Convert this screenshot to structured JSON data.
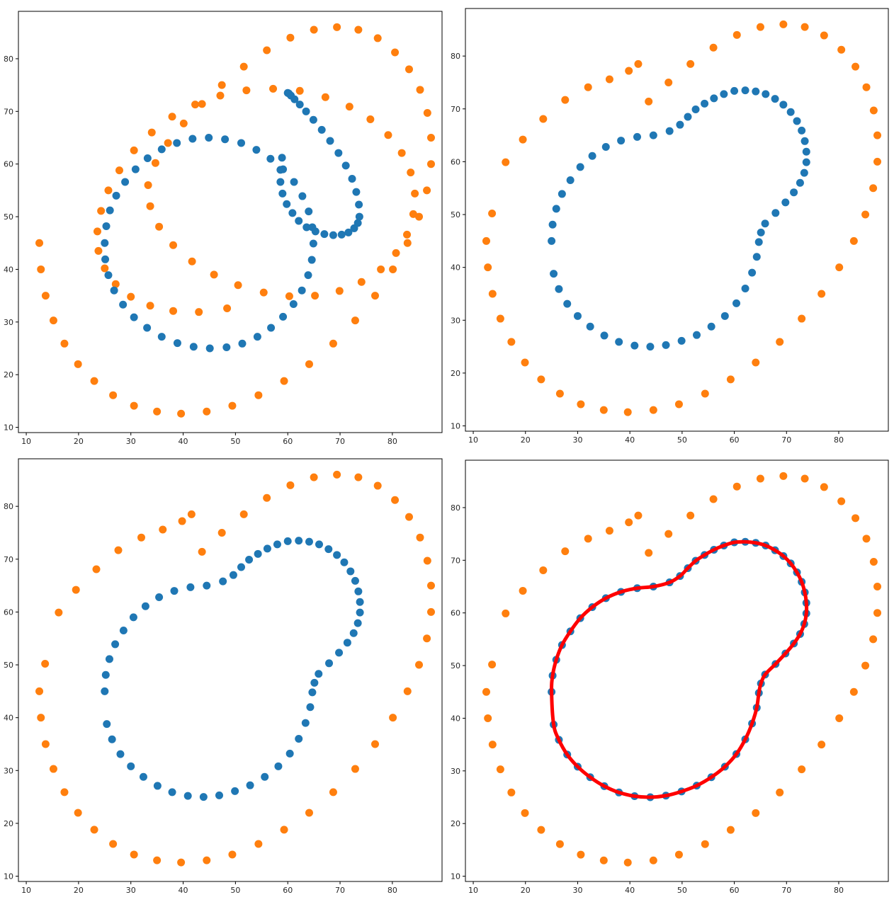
{
  "figure": {
    "layout": "2x2 grid",
    "colors": {
      "ring_inner": "#1f77b4",
      "ring_outer": "#ff7f0e",
      "fitted_curve": "#ff0000"
    }
  },
  "chart_data": [
    {
      "type": "scatter",
      "panel": "top-left",
      "title": "",
      "xlabel": "",
      "ylabel": "",
      "xlim": [
        8.5,
        89.5
      ],
      "ylim": [
        9,
        89
      ],
      "xticks": [
        "10",
        "20",
        "30",
        "40",
        "50",
        "60",
        "70",
        "80"
      ],
      "yticks": [
        "10",
        "20",
        "30",
        "40",
        "50",
        "60",
        "70",
        "80"
      ],
      "grid": false,
      "series": [
        {
          "color": "#1f77b4",
          "x": [
            25,
            25.3,
            26,
            27.2,
            28.9,
            30.9,
            33.2,
            35.9,
            38.8,
            41.8,
            44.9,
            48.0,
            51.1,
            54.0,
            56.7,
            59.1,
            61.2,
            62.8,
            64.0,
            64.7,
            64.9,
            64.6,
            63.9,
            62.7,
            61.1,
            59.1,
            56.8,
            54.2,
            51.3,
            48.3,
            45.1,
            42.0,
            38.9,
            35.9,
            33.1,
            30.6,
            28.5,
            26.8,
            25.7,
            25.1,
            60,
            60.2,
            60.6,
            61.3,
            62.3,
            63.5,
            64.9,
            66.5,
            68.1,
            69.7,
            71.1,
            72.3,
            73.1,
            73.6,
            73.7,
            73.4,
            72.7,
            71.6,
            70.3,
            68.7,
            67.0,
            65.3,
            63.6,
            62.1,
            60.9,
            59.8,
            59.0,
            58.6,
            58.6,
            58.9
          ],
          "y": [
            45,
            48.2,
            51.2,
            54.0,
            56.6,
            59.0,
            61.1,
            62.8,
            64.0,
            64.8,
            65.0,
            64.7,
            64.0,
            62.7,
            61.0,
            59.0,
            56.6,
            53.9,
            51.0,
            48.0,
            44.9,
            41.8,
            38.9,
            36.0,
            33.4,
            31.0,
            28.9,
            27.2,
            25.9,
            25.2,
            25.0,
            25.3,
            26.0,
            27.2,
            28.9,
            30.9,
            33.3,
            36.0,
            38.9,
            41.9,
            73.5,
            73.4,
            73.0,
            72.3,
            71.3,
            70.0,
            68.4,
            66.5,
            64.4,
            62.1,
            59.7,
            57.2,
            54.7,
            52.3,
            50.0,
            48.8,
            47.8,
            47.0,
            46.6,
            46.5,
            46.7,
            47.2,
            48.0,
            49.2,
            50.7,
            52.4,
            54.4,
            56.6,
            58.9,
            61.2
          ]
        },
        {
          "color": "#ff7f0e",
          "x": [
            12.5,
            12.8,
            13.7,
            15.2,
            17.3,
            19.9,
            23.0,
            26.6,
            30.6,
            35.0,
            39.6,
            44.5,
            49.4,
            54.4,
            59.3,
            64.1,
            68.7,
            72.9,
            76.7,
            80.1,
            82.9,
            85.1,
            86.6,
            87.4,
            87.4,
            86.7,
            85.3,
            83.2,
            80.5,
            77.2,
            73.5,
            69.4,
            65.0,
            60.5,
            56.0,
            51.6,
            47.4,
            43.6,
            40.1,
            37.1,
            34.7,
            33.3,
            33.7,
            35.4,
            38.1,
            41.7,
            45.9,
            50.5,
            55.4,
            60.3,
            65.2,
            69.9,
            74.1,
            77.8,
            80.7,
            82.8,
            84.0,
            84.3,
            83.5,
            81.8,
            79.2,
            75.8,
            71.8,
            67.2,
            62.3,
            57.2,
            52.1,
            47.1,
            42.3,
            37.9,
            34.0,
            30.6,
            27.8,
            25.7,
            24.3,
            23.6,
            23.8,
            25.0,
            27.1,
            30.0,
            33.7,
            38.1,
            43.0,
            48.4
          ],
          "y": [
            45,
            40,
            35,
            30.3,
            25.9,
            22,
            18.8,
            16.1,
            14.1,
            13,
            12.6,
            13,
            14.1,
            16.1,
            18.8,
            22,
            25.9,
            30.3,
            35,
            40,
            45,
            50,
            55,
            60,
            65,
            69.7,
            74.1,
            78,
            81.2,
            83.9,
            85.5,
            86.0,
            85.5,
            84.0,
            81.6,
            78.5,
            75.0,
            71.4,
            67.7,
            64.0,
            60.2,
            56.0,
            52.0,
            48.1,
            44.6,
            41.5,
            39.0,
            37.0,
            35.6,
            34.9,
            35.0,
            35.9,
            37.6,
            40.0,
            43.1,
            46.6,
            50.5,
            54.4,
            58.4,
            62.1,
            65.5,
            68.5,
            70.9,
            72.7,
            73.9,
            74.3,
            74.0,
            73.0,
            71.3,
            69.0,
            66.0,
            62.6,
            58.8,
            55.0,
            51.1,
            47.2,
            43.5,
            40.2,
            37.2,
            34.8,
            33.1,
            32.1,
            31.9,
            32.6
          ]
        }
      ]
    },
    {
      "type": "scatter",
      "panel": "top-right",
      "title": "",
      "xlabel": "",
      "ylabel": "",
      "xlim": [
        8.5,
        89.5
      ],
      "ylim": [
        9,
        89
      ],
      "xticks": [
        "10",
        "20",
        "30",
        "40",
        "50",
        "60",
        "70",
        "80"
      ],
      "yticks": [
        "10",
        "20",
        "30",
        "40",
        "50",
        "60",
        "70",
        "80"
      ],
      "grid": false,
      "series": [
        {
          "color": "#1f77b4",
          "x": [
            25,
            25.2,
            25.9,
            27.0,
            28.6,
            30.5,
            32.8,
            35.4,
            38.3,
            41.4,
            44.5,
            47.6,
            49.6,
            51.1,
            52.6,
            54.3,
            56.1,
            58.0,
            60.0,
            62.1,
            64.1,
            66.0,
            67.8,
            69.4,
            70.8,
            72.0,
            72.9,
            73.5,
            73.8,
            73.8,
            73.4,
            72.6,
            71.4,
            69.8,
            67.9,
            65.9,
            65.1,
            64.7,
            64.3,
            63.4,
            62.1,
            60.4,
            58.2,
            55.6,
            52.8,
            49.9,
            46.9,
            43.9,
            40.9,
            37.9,
            35.1,
            32.4,
            30.0,
            28.0,
            26.4,
            25.4
          ],
          "y": [
            45,
            48.1,
            51.1,
            53.9,
            56.5,
            59.0,
            61.1,
            62.8,
            64.0,
            64.7,
            65.0,
            65.8,
            67.0,
            68.5,
            69.9,
            71.0,
            72.0,
            72.8,
            73.4,
            73.5,
            73.3,
            72.8,
            71.9,
            70.8,
            69.4,
            67.7,
            65.9,
            63.9,
            61.9,
            59.9,
            57.9,
            56.0,
            54.2,
            52.3,
            50.3,
            48.3,
            46.6,
            44.8,
            42.0,
            39.0,
            36.0,
            33.2,
            30.8,
            28.8,
            27.2,
            26.1,
            25.3,
            25.0,
            25.2,
            25.9,
            27.1,
            28.8,
            30.8,
            33.1,
            35.9,
            38.8
          ]
        },
        {
          "color": "#ff7f0e",
          "x": [
            12.5,
            12.8,
            13.7,
            15.2,
            17.3,
            19.9,
            23.0,
            26.6,
            30.6,
            35.0,
            39.6,
            44.5,
            49.4,
            54.4,
            59.3,
            64.1,
            68.7,
            72.9,
            76.7,
            80.1,
            82.9,
            85.1,
            86.6,
            87.4,
            87.4,
            86.7,
            85.3,
            83.2,
            80.5,
            77.2,
            73.5,
            69.4,
            65.0,
            60.5,
            56.0,
            51.6,
            47.4,
            43.6,
            41.6,
            39.8,
            36.1,
            32.0,
            27.6,
            23.4,
            19.5,
            16.2,
            13.6
          ],
          "y": [
            45,
            40,
            35,
            30.3,
            25.9,
            22,
            18.8,
            16.1,
            14.1,
            13,
            12.6,
            13,
            14.1,
            16.1,
            18.8,
            22,
            25.9,
            30.3,
            35,
            40,
            45,
            50,
            55,
            60,
            65,
            69.7,
            74.1,
            78,
            81.2,
            83.9,
            85.5,
            86.0,
            85.5,
            84.0,
            81.6,
            78.5,
            75.0,
            71.4,
            78.5,
            77.2,
            75.6,
            74.1,
            71.7,
            68.1,
            64.2,
            59.9,
            50.2
          ]
        }
      ]
    },
    {
      "type": "scatter",
      "panel": "bottom-left",
      "title": "",
      "xlabel": "",
      "ylabel": "",
      "xlim": [
        8.5,
        89.5
      ],
      "ylim": [
        9,
        89
      ],
      "xticks": [
        "10",
        "20",
        "30",
        "40",
        "50",
        "60",
        "70",
        "80"
      ],
      "yticks": [
        "10",
        "20",
        "30",
        "40",
        "50",
        "60",
        "70",
        "80"
      ],
      "grid": false,
      "series": [
        {
          "color": "#1f77b4",
          "x": [
            25,
            25.2,
            25.9,
            27.0,
            28.6,
            30.5,
            32.8,
            35.4,
            38.3,
            41.4,
            44.5,
            47.6,
            49.6,
            51.1,
            52.6,
            54.3,
            56.1,
            58.0,
            60.0,
            62.1,
            64.1,
            66.0,
            67.8,
            69.4,
            70.8,
            72.0,
            72.9,
            73.5,
            73.8,
            73.8,
            73.4,
            72.6,
            71.4,
            69.8,
            67.9,
            65.9,
            65.1,
            64.7,
            64.3,
            63.4,
            62.1,
            60.4,
            58.2,
            55.6,
            52.8,
            49.9,
            46.9,
            43.9,
            40.9,
            37.9,
            35.1,
            32.4,
            30.0,
            28.0,
            26.4,
            25.4
          ],
          "y": [
            45,
            48.1,
            51.1,
            53.9,
            56.5,
            59.0,
            61.1,
            62.8,
            64.0,
            64.7,
            65.0,
            65.8,
            67.0,
            68.5,
            69.9,
            71.0,
            72.0,
            72.8,
            73.4,
            73.5,
            73.3,
            72.8,
            71.9,
            70.8,
            69.4,
            67.7,
            65.9,
            63.9,
            61.9,
            59.9,
            57.9,
            56.0,
            54.2,
            52.3,
            50.3,
            48.3,
            46.6,
            44.8,
            42.0,
            39.0,
            36.0,
            33.2,
            30.8,
            28.8,
            27.2,
            26.1,
            25.3,
            25.0,
            25.2,
            25.9,
            27.1,
            28.8,
            30.8,
            33.1,
            35.9,
            38.8
          ]
        },
        {
          "color": "#ff7f0e",
          "x": [
            12.5,
            12.8,
            13.7,
            15.2,
            17.3,
            19.9,
            23.0,
            26.6,
            30.6,
            35.0,
            39.6,
            44.5,
            49.4,
            54.4,
            59.3,
            64.1,
            68.7,
            72.9,
            76.7,
            80.1,
            82.9,
            85.1,
            86.6,
            87.4,
            87.4,
            86.7,
            85.3,
            83.2,
            80.5,
            77.2,
            73.5,
            69.4,
            65.0,
            60.5,
            56.0,
            51.6,
            47.4,
            43.6,
            41.6,
            39.8,
            36.1,
            32.0,
            27.6,
            23.4,
            19.5,
            16.2,
            13.6
          ],
          "y": [
            45,
            40,
            35,
            30.3,
            25.9,
            22,
            18.8,
            16.1,
            14.1,
            13,
            12.6,
            13,
            14.1,
            16.1,
            18.8,
            22,
            25.9,
            30.3,
            35,
            40,
            45,
            50,
            55,
            60,
            65,
            69.7,
            74.1,
            78,
            81.2,
            83.9,
            85.5,
            86.0,
            85.5,
            84.0,
            81.6,
            78.5,
            75.0,
            71.4,
            78.5,
            77.2,
            75.6,
            74.1,
            71.7,
            68.1,
            64.2,
            59.9,
            50.2
          ]
        }
      ]
    },
    {
      "type": "scatter",
      "panel": "bottom-right",
      "title": "",
      "xlabel": "",
      "ylabel": "",
      "xlim": [
        8.5,
        89.5
      ],
      "ylim": [
        9,
        89
      ],
      "xticks": [
        "10",
        "20",
        "30",
        "40",
        "50",
        "60",
        "70",
        "80"
      ],
      "yticks": [
        "10",
        "20",
        "30",
        "40",
        "50",
        "60",
        "70",
        "80"
      ],
      "grid": false,
      "series": [
        {
          "color": "#1f77b4",
          "x": [
            25,
            25.2,
            25.9,
            27.0,
            28.6,
            30.5,
            32.8,
            35.4,
            38.3,
            41.4,
            44.5,
            47.6,
            49.6,
            51.1,
            52.6,
            54.3,
            56.1,
            58.0,
            60.0,
            62.1,
            64.1,
            66.0,
            67.8,
            69.4,
            70.8,
            72.0,
            72.9,
            73.5,
            73.8,
            73.8,
            73.4,
            72.6,
            71.4,
            69.8,
            67.9,
            65.9,
            65.1,
            64.7,
            64.3,
            63.4,
            62.1,
            60.4,
            58.2,
            55.6,
            52.8,
            49.9,
            46.9,
            43.9,
            40.9,
            37.9,
            35.1,
            32.4,
            30.0,
            28.0,
            26.4,
            25.4
          ],
          "y": [
            45,
            48.1,
            51.1,
            53.9,
            56.5,
            59.0,
            61.1,
            62.8,
            64.0,
            64.7,
            65.0,
            65.8,
            67.0,
            68.5,
            69.9,
            71.0,
            72.0,
            72.8,
            73.4,
            73.5,
            73.3,
            72.8,
            71.9,
            70.8,
            69.4,
            67.7,
            65.9,
            63.9,
            61.9,
            59.9,
            57.9,
            56.0,
            54.2,
            52.3,
            50.3,
            48.3,
            46.6,
            44.8,
            42.0,
            39.0,
            36.0,
            33.2,
            30.8,
            28.8,
            27.2,
            26.1,
            25.3,
            25.0,
            25.2,
            25.9,
            27.1,
            28.8,
            30.8,
            33.1,
            35.9,
            38.8
          ]
        },
        {
          "color": "#ff7f0e",
          "x": [
            12.5,
            12.8,
            13.7,
            15.2,
            17.3,
            19.9,
            23.0,
            26.6,
            30.6,
            35.0,
            39.6,
            44.5,
            49.4,
            54.4,
            59.3,
            64.1,
            68.7,
            72.9,
            76.7,
            80.1,
            82.9,
            85.1,
            86.6,
            87.4,
            87.4,
            86.7,
            85.3,
            83.2,
            80.5,
            77.2,
            73.5,
            69.4,
            65.0,
            60.5,
            56.0,
            51.6,
            47.4,
            43.6,
            41.6,
            39.8,
            36.1,
            32.0,
            27.6,
            23.4,
            19.5,
            16.2,
            13.6
          ],
          "y": [
            45,
            40,
            35,
            30.3,
            25.9,
            22,
            18.8,
            16.1,
            14.1,
            13,
            12.6,
            13,
            14.1,
            16.1,
            18.8,
            22,
            25.9,
            30.3,
            35,
            40,
            45,
            50,
            55,
            60,
            65,
            69.7,
            74.1,
            78,
            81.2,
            83.9,
            85.5,
            86.0,
            85.5,
            84.0,
            81.6,
            78.5,
            75.0,
            71.4,
            78.5,
            77.2,
            75.6,
            74.1,
            71.7,
            68.1,
            64.2,
            59.9,
            50.2
          ]
        }
      ],
      "curve": {
        "type": "closed-line",
        "color": "#ff0000",
        "follows": "blue series"
      }
    }
  ]
}
